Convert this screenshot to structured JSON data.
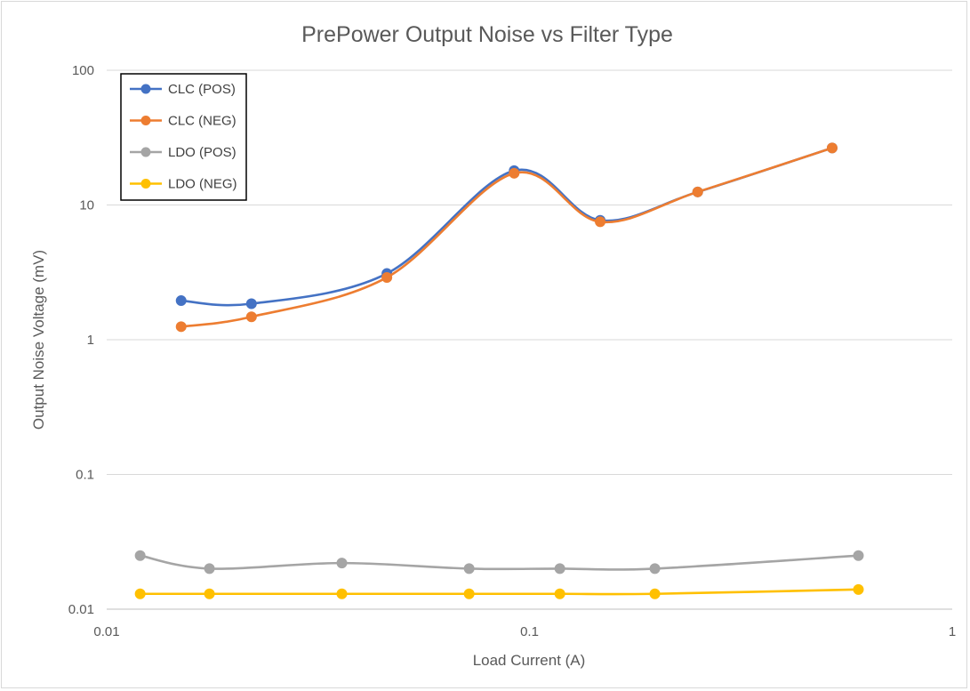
{
  "chart_data": {
    "type": "line",
    "title": "PrePower Output Noise vs Filter Type",
    "xlabel": "Load Current (A)",
    "ylabel": "Output Noise Voltage (mV)",
    "x_scale": "log",
    "y_scale": "log",
    "xlim": [
      0.01,
      1
    ],
    "ylim": [
      0.01,
      100
    ],
    "x_ticks": [
      "0.01",
      "0.1",
      "1"
    ],
    "y_ticks": [
      "0.01",
      "0.1",
      "1",
      "10",
      "100"
    ],
    "grid": "horizontal",
    "legend_position": "top-left",
    "series": [
      {
        "name": "CLC (POS)",
        "color": "#4472c4",
        "points": [
          [
            0.015,
            1.95
          ],
          [
            0.022,
            1.85
          ],
          [
            0.046,
            3.1
          ],
          [
            0.092,
            18.0
          ],
          [
            0.147,
            7.7
          ],
          [
            0.25,
            12.5
          ],
          [
            0.52,
            26.5
          ]
        ]
      },
      {
        "name": "CLC (NEG)",
        "color": "#ed7d31",
        "points": [
          [
            0.015,
            1.25
          ],
          [
            0.022,
            1.48
          ],
          [
            0.046,
            2.9
          ],
          [
            0.092,
            17.2
          ],
          [
            0.147,
            7.5
          ],
          [
            0.25,
            12.5
          ],
          [
            0.52,
            26.5
          ]
        ]
      },
      {
        "name": "LDO (POS)",
        "color": "#a5a5a5",
        "points": [
          [
            0.012,
            0.025
          ],
          [
            0.0175,
            0.02
          ],
          [
            0.036,
            0.022
          ],
          [
            0.072,
            0.02
          ],
          [
            0.118,
            0.02
          ],
          [
            0.198,
            0.02
          ],
          [
            0.6,
            0.025
          ]
        ]
      },
      {
        "name": "LDO (NEG)",
        "color": "#ffc000",
        "points": [
          [
            0.012,
            0.013
          ],
          [
            0.0175,
            0.013
          ],
          [
            0.036,
            0.013
          ],
          [
            0.072,
            0.013
          ],
          [
            0.118,
            0.013
          ],
          [
            0.198,
            0.013
          ],
          [
            0.6,
            0.014
          ]
        ]
      }
    ]
  }
}
